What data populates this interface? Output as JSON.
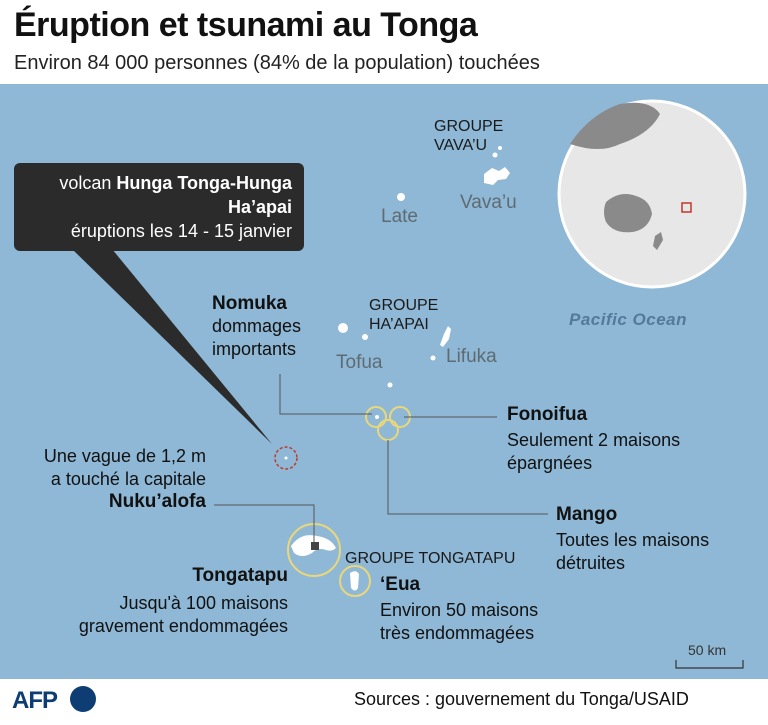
{
  "header": {
    "title": "Éruption et tsunami au Tonga",
    "subtitle": "Environ 84 000 personnes (84% de la population) touchées"
  },
  "callout": {
    "line1_prefix": "volcan ",
    "line1_bold": "Hunga Tonga-Hunga",
    "line2_bold": "Ha’apai",
    "line3": "éruptions les 14 - 15 janvier"
  },
  "groups": {
    "vavau": [
      "GROUPE",
      "VAVA’U"
    ],
    "haapai": [
      "GROUPE",
      "HA’APAI"
    ],
    "tongatapu": "GROUPE TONGATAPU"
  },
  "islands": {
    "late": "Late",
    "vavau": "Vava’u",
    "tofua": "Tofua",
    "lifuka": "Lifuka"
  },
  "places": {
    "nomuka": {
      "name": "Nomuka",
      "desc": [
        "dommages",
        "importants"
      ]
    },
    "fonoifua": {
      "name": "Fonoifua",
      "desc": [
        "Seulement 2 maisons",
        "épargnées"
      ]
    },
    "mango": {
      "name": "Mango",
      "desc": [
        "Toutes les maisons",
        "détruites"
      ]
    },
    "nukualofa": {
      "name": "Nuku’alofa",
      "desc": [
        "Une vague de 1,2 m",
        "a touché la capitale"
      ]
    },
    "tongatapu": {
      "name": "Tongatapu",
      "desc": [
        "Jusqu'à 100 maisons",
        "gravement endommagées"
      ]
    },
    "eua": {
      "name": "‘Eua",
      "desc": [
        "Environ 50 maisons",
        "très endommagées"
      ]
    }
  },
  "ocean_label": "Pacific Ocean",
  "scale_label": "50 km",
  "footer": {
    "logo": "AFP",
    "sources": "Sources : gouvernement du Tonga/USAID"
  },
  "colors": {
    "sea": "#8fb8d6",
    "land": "#ffffff",
    "callout_bg": "#2b2b2b",
    "highlight_ring": "#e9d77a",
    "volcano_ring": "#c0392b",
    "brand": "#0d3d72"
  }
}
